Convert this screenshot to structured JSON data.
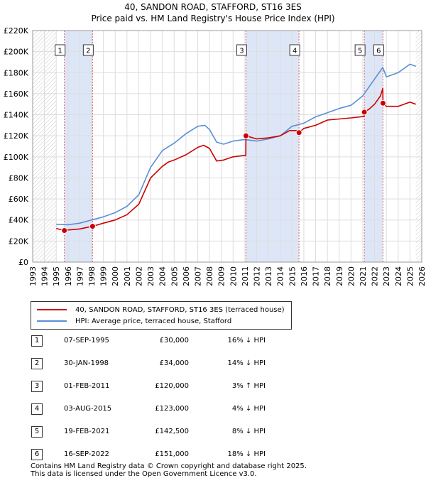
{
  "title": {
    "line1": "40, SANDON ROAD, STAFFORD, ST16 3ES",
    "line2": "Price paid vs. HM Land Registry's House Price Index (HPI)"
  },
  "colors": {
    "property": "#cc0000",
    "hpi": "#5b8fd6",
    "band": "#dde6f7",
    "grid": "#dddddd"
  },
  "legend": {
    "property_label": "40, SANDON ROAD, STAFFORD, ST16 3ES (terraced house)",
    "hpi_label": "HPI: Average price, terraced house, Stafford"
  },
  "transactions": [
    {
      "num": "1",
      "date": "07-SEP-1995",
      "price": "£30,000",
      "hpi": "16% ↓ HPI"
    },
    {
      "num": "2",
      "date": "30-JAN-1998",
      "price": "£34,000",
      "hpi": "14% ↓ HPI"
    },
    {
      "num": "3",
      "date": "01-FEB-2011",
      "price": "£120,000",
      "hpi": "3% ↑ HPI"
    },
    {
      "num": "4",
      "date": "03-AUG-2015",
      "price": "£123,000",
      "hpi": "4% ↓ HPI"
    },
    {
      "num": "5",
      "date": "19-FEB-2021",
      "price": "£142,500",
      "hpi": "8% ↓ HPI"
    },
    {
      "num": "6",
      "date": "16-SEP-2022",
      "price": "£151,000",
      "hpi": "18% ↓ HPI"
    }
  ],
  "footer": {
    "line1": "Contains HM Land Registry data © Crown copyright and database right 2025.",
    "line2": "This data is licensed under the Open Government Licence v3.0."
  },
  "chart_data": {
    "type": "line",
    "title": "40, SANDON ROAD, STAFFORD, ST16 3ES — Price paid vs. HM Land Registry's House Price Index (HPI)",
    "xlabel": "",
    "ylabel": "",
    "xlim": [
      1993,
      2026
    ],
    "ylim": [
      0,
      220000
    ],
    "x_ticks": [
      1993,
      1994,
      1995,
      1996,
      1997,
      1998,
      1999,
      2000,
      2001,
      2002,
      2003,
      2004,
      2005,
      2006,
      2007,
      2008,
      2009,
      2010,
      2011,
      2012,
      2013,
      2014,
      2015,
      2016,
      2017,
      2018,
      2019,
      2020,
      2021,
      2022,
      2023,
      2024,
      2025,
      2026
    ],
    "y_ticks": [
      {
        "value": 0,
        "label": "£0"
      },
      {
        "value": 20000,
        "label": "£20K"
      },
      {
        "value": 40000,
        "label": "£40K"
      },
      {
        "value": 60000,
        "label": "£60K"
      },
      {
        "value": 80000,
        "label": "£80K"
      },
      {
        "value": 100000,
        "label": "£100K"
      },
      {
        "value": 120000,
        "label": "£120K"
      },
      {
        "value": 140000,
        "label": "£140K"
      },
      {
        "value": 160000,
        "label": "£160K"
      },
      {
        "value": 180000,
        "label": "£180K"
      },
      {
        "value": 200000,
        "label": "£200K"
      },
      {
        "value": 220000,
        "label": "£220K"
      }
    ],
    "data_start": 1995.0,
    "data_end": 2025.5,
    "shaded_periods": [
      [
        1995.69,
        1998.08
      ],
      [
        2011.09,
        2015.59
      ],
      [
        2021.13,
        2022.71
      ]
    ],
    "markers": [
      {
        "label": "1",
        "x": 1995.69,
        "y": 30000
      },
      {
        "label": "2",
        "x": 1998.08,
        "y": 34000
      },
      {
        "label": "3",
        "x": 2011.09,
        "y": 120000
      },
      {
        "label": "4",
        "x": 2015.59,
        "y": 123000
      },
      {
        "label": "5",
        "x": 2021.13,
        "y": 142500
      },
      {
        "label": "6",
        "x": 2022.71,
        "y": 151000
      }
    ],
    "series": [
      {
        "name": "40, SANDON ROAD, STAFFORD, ST16 3ES (terraced house)",
        "x": [
          1995.0,
          1995.69,
          1996.0,
          1997.0,
          1998.08,
          1999.0,
          2000.0,
          2001.0,
          2002.0,
          2003.0,
          2004.0,
          2004.5,
          2005.0,
          2006.0,
          2007.0,
          2007.5,
          2008.0,
          2008.6,
          2009.2,
          2010.0,
          2011.08,
          2011.09,
          2012.0,
          2013.0,
          2014.0,
          2014.8,
          2015.58,
          2015.59,
          2016.0,
          2017.0,
          2018.0,
          2019.0,
          2020.0,
          2021.12,
          2021.13,
          2021.5,
          2022.0,
          2022.5,
          2022.7,
          2022.71,
          2023.0,
          2024.0,
          2025.0,
          2025.5
        ],
        "y": [
          32000,
          30000,
          30500,
          31500,
          34000,
          37000,
          40000,
          45000,
          55000,
          80000,
          91000,
          95000,
          97000,
          102000,
          109000,
          111000,
          108000,
          96000,
          97000,
          100000,
          101500,
          120000,
          117000,
          118000,
          120000,
          125000,
          125000,
          123000,
          127000,
          130000,
          135000,
          136000,
          137000,
          138500,
          142500,
          145000,
          150000,
          158000,
          165000,
          151000,
          148000,
          148000,
          152000,
          150000
        ]
      },
      {
        "name": "HPI: Average price, terraced house, Stafford",
        "x": [
          1995.0,
          1996.0,
          1997.0,
          1998.0,
          1999.0,
          2000.0,
          2001.0,
          2002.0,
          2003.0,
          2004.0,
          2005.0,
          2006.0,
          2007.0,
          2007.6,
          2008.0,
          2008.6,
          2009.2,
          2010.0,
          2011.0,
          2012.0,
          2013.0,
          2014.0,
          2015.0,
          2016.0,
          2017.0,
          2018.0,
          2019.0,
          2020.0,
          2021.0,
          2022.0,
          2022.7,
          2023.0,
          2024.0,
          2025.0,
          2025.5
        ],
        "y": [
          36000,
          35500,
          37000,
          40000,
          43000,
          47000,
          53000,
          64000,
          90000,
          106000,
          113000,
          122000,
          129000,
          130000,
          126000,
          114000,
          112000,
          115000,
          116500,
          115000,
          117000,
          120000,
          129000,
          132000,
          138000,
          142000,
          146000,
          149000,
          158000,
          174000,
          185000,
          176000,
          180000,
          188000,
          186000
        ]
      }
    ]
  }
}
